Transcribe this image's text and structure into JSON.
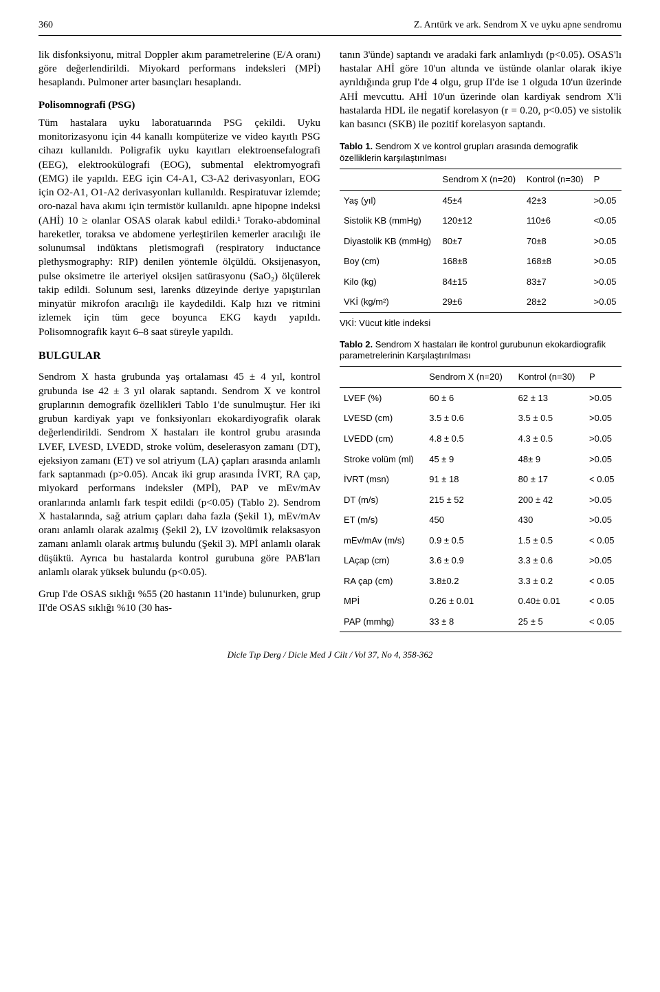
{
  "header": {
    "page_number": "360",
    "running_title": "Z. Arıtürk ve ark. Sendrom X ve uyku apne sendromu"
  },
  "left_column": {
    "intro_para": "lik disfonksiyonu, mitral Doppler akım parametrelerine (E/A oranı) göre değerlendirildi. Miyokard performans indeksleri (MPİ) hesaplandı. Pulmoner arter basınçları hesaplandı.",
    "psg_head": "Polisomnografi (PSG)",
    "psg_para": "Tüm hastalara uyku laboratuarında PSG çekildi. Uyku monitorizasyonu için 44 kanallı kompüterize ve video kayıtlı PSG cihazı kullanıldı. Poligrafik uyku kayıtları elektroensefalografi (EEG), elektrookülografi (EOG), submental elektromyografi (EMG) ile yapıldı. EEG için C4-A1, C3-A2 derivasyonları, EOG için O2-A1, O1-A2 derivasyonları kullanıldı. Respiratuvar izlemde; oro-nazal hava akımı için termistör kullanıldı. apne hipopne indeksi (AHİ) 10 ≥ olanlar OSAS olarak kabul edildi.¹ Torako-abdominal hareketler, toraksa ve abdomene yerleştirilen kemerler aracılığı ile solunumsal indüktans pletismografi (respiratory inductance plethysmography: RIP) denilen yöntemle ölçüldü. Oksijenasyon, pulse oksimetre ile arteriyel oksijen satürasyonu (SaO₂) ölçülerek takip edildi. Solunum sesi, larenks düzeyinde deriye yapıştırılan minyatür mikrofon aracılığı ile kaydedildi. Kalp hızı ve ritmini izlemek için tüm gece boyunca EKG kaydı yapıldı. Polisomnografik kayıt 6–8 saat süreyle yapıldı.",
    "bulgular_head": "BULGULAR",
    "bulgular_p1": "Sendrom X hasta grubunda yaş ortalaması 45 ± 4 yıl, kontrol grubunda ise 42 ± 3 yıl olarak saptandı. Sendrom X ve kontrol gruplarının demografik özellikleri Tablo 1'de sunulmuştur. Her iki grubun kardiyak yapı ve fonksiyonları ekokardiyografik olarak değerlendirildi. Sendrom X hastaları ile kontrol grubu arasında LVEF, LVESD, LVEDD, stroke volüm, deselerasyon zamanı (DT), ejeksiyon zamanı (ET) ve sol atriyum (LA) çapları arasında anlamlı fark saptanmadı (p>0.05). Ancak iki grup arasında İVRT, RA çap, miyokard performans indeksler (MPİ), PAP ve mEv/mAv oranlarında anlamlı fark tespit edildi (p<0.05) (Tablo 2). Sendrom X hastalarında, sağ atrium çapları daha fazla (Şekil 1), mEv/mAv oranı anlamlı olarak azalmış (Şekil 2), LV izovolümik relaksasyon zamanı anlamlı olarak artmış bulundu (Şekil 3). MPİ anlamlı olarak düşüktü. Ayrıca bu hastalarda kontrol gurubuna göre PAB'ları anlamlı olarak yüksek bulundu (p<0.05).",
    "bulgular_p2": "Grup I'de OSAS sıklığı %55 (20 hastanın 11'inde) bulunurken, grup II'de OSAS sıklığı %10 (30 has-"
  },
  "right_column": {
    "top_para": "tanın 3'ünde) saptandı ve aradaki fark anlamlıydı (p<0.05). OSAS'lı hastalar AHİ göre 10'un altında ve üstünde olanlar olarak ikiye ayrıldığında grup I'de 4 olgu, grup II'de ise 1 olguda 10'un üzerinde AHİ mevcuttu. AHİ 10'un üzerinde olan kardiyak sendrom X'li hastalarda HDL ile negatif korelasyon (r = 0.20, p<0.05) ve sistolik kan basıncı (SKB) ile pozitif korelasyon saptandı."
  },
  "table1": {
    "caption_bold": "Tablo 1.",
    "caption_rest": " Sendrom X ve kontrol grupları arasında demografik özelliklerin karşılaştırılması",
    "col_headers": [
      "",
      "Sendrom X (n=20)",
      "Kontrol (n=30)",
      "P"
    ],
    "rows": [
      [
        "Yaş (yıl)",
        "45±4",
        "42±3",
        ">0.05"
      ],
      [
        "Sistolik KB (mmHg)",
        "120±12",
        "110±6",
        "<0.05"
      ],
      [
        "Diyastolik KB (mmHg)",
        "80±7",
        "70±8",
        ">0.05"
      ],
      [
        "Boy (cm)",
        "168±8",
        "168±8",
        ">0.05"
      ],
      [
        "Kilo (kg)",
        "84±15",
        "83±7",
        ">0.05"
      ],
      [
        "VKİ (kg/m²)",
        "29±6",
        "28±2",
        ">0.05"
      ]
    ],
    "footnote": "VKİ: Vücut kitle indeksi",
    "font_family": "Arial",
    "font_size_pt": 10,
    "border_color": "#000000",
    "text_color": "#000000"
  },
  "table2": {
    "caption_bold": "Tablo 2.",
    "caption_rest": " Sendrom X hastaları ile kontrol gurubunun ekokardiografik parametrelerinin Karşılaştırılması",
    "col_headers": [
      "",
      "Sendrom X (n=20)",
      "Kontrol (n=30)",
      "P"
    ],
    "rows": [
      [
        "LVEF (%)",
        "60 ± 6",
        "62 ± 13",
        ">0.05"
      ],
      [
        "LVESD (cm)",
        "3.5 ± 0.6",
        "3.5 ± 0.5",
        ">0.05"
      ],
      [
        "LVEDD (cm)",
        "4.8 ± 0.5",
        "4.3 ± 0.5",
        ">0.05"
      ],
      [
        "Stroke volüm (ml)",
        "45 ± 9",
        "48± 9",
        ">0.05"
      ],
      [
        "İVRT (msn)",
        "91 ± 18",
        "80 ± 17",
        "< 0.05"
      ],
      [
        "DT (m/s)",
        "215 ± 52",
        "200 ± 42",
        ">0.05"
      ],
      [
        "ET (m/s)",
        "450",
        "430",
        ">0.05"
      ],
      [
        "mEv/mAv (m/s)",
        "0.9 ± 0.5",
        "1.5 ± 0.5",
        "< 0.05"
      ],
      [
        "LAçap (cm)",
        "3.6 ± 0.9",
        "3.3 ± 0.6",
        ">0.05"
      ],
      [
        "RA çap (cm)",
        "3.8±0.2",
        "3.3 ± 0.2",
        "< 0.05"
      ],
      [
        "MPİ",
        "0.26 ± 0.01",
        "0.40± 0.01",
        "< 0.05"
      ],
      [
        "PAP (mmhg)",
        "33 ± 8",
        "25 ± 5",
        "< 0.05"
      ]
    ],
    "font_family": "Arial",
    "font_size_pt": 10,
    "border_color": "#000000",
    "text_color": "#000000"
  },
  "footer": {
    "text": "Dicle Tıp Derg / Dicle Med J Cilt / Vol 37, No 4, 358-362"
  },
  "typography": {
    "body_font": "Times New Roman",
    "body_font_size_pt": 11,
    "table_font": "Arial",
    "table_font_size_pt": 10,
    "text_color": "#000000",
    "background_color": "#ffffff"
  }
}
